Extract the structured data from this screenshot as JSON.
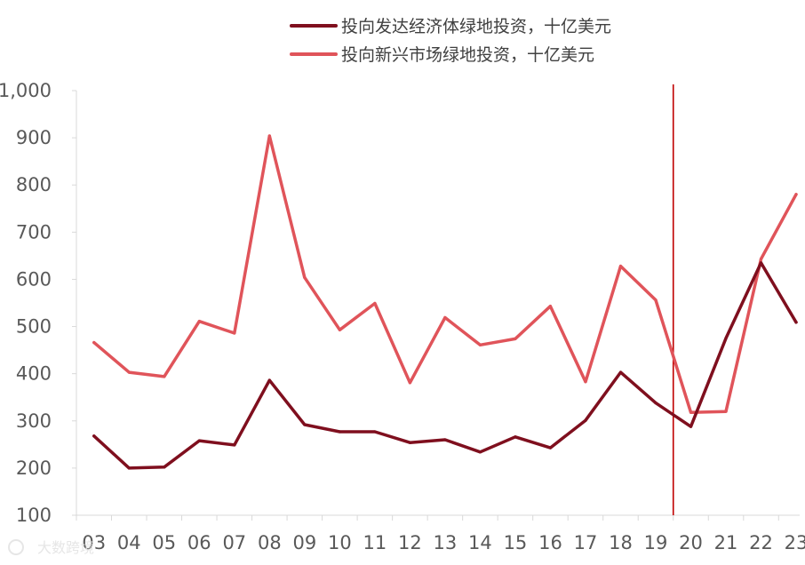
{
  "chart_data": {
    "type": "line",
    "title": "",
    "xlabel": "",
    "ylabel": "",
    "categories": [
      "03",
      "04",
      "05",
      "06",
      "07",
      "08",
      "09",
      "10",
      "11",
      "12",
      "13",
      "14",
      "15",
      "16",
      "17",
      "18",
      "19",
      "20",
      "21",
      "22",
      "23"
    ],
    "ylim": [
      100,
      1000
    ],
    "yticks": [
      "1,000",
      "900",
      "800",
      "700",
      "600",
      "500",
      "400",
      "300",
      "200",
      "100"
    ],
    "ytick_values": [
      1000,
      900,
      800,
      700,
      600,
      500,
      400,
      300,
      200,
      100
    ],
    "grid": false,
    "legend_position": "top",
    "marker_line_at": "19-20",
    "series": [
      {
        "name": "投向发达经济体绿地投资，十亿美元",
        "color": "#7f0f1e",
        "values": [
          268,
          200,
          202,
          258,
          249,
          386,
          292,
          277,
          277,
          254,
          260,
          234,
          266,
          243,
          301,
          403,
          338,
          288,
          475,
          635,
          509
        ]
      },
      {
        "name": "投向新兴市场绿地投资，十亿美元",
        "color": "#e0545a",
        "values": [
          466,
          403,
          394,
          511,
          486,
          904,
          604,
          493,
          549,
          381,
          519,
          461,
          474,
          543,
          383,
          628,
          556,
          318,
          320,
          643,
          780
        ]
      }
    ],
    "vline_color": "#c00000",
    "watermark": "大数跨境"
  }
}
